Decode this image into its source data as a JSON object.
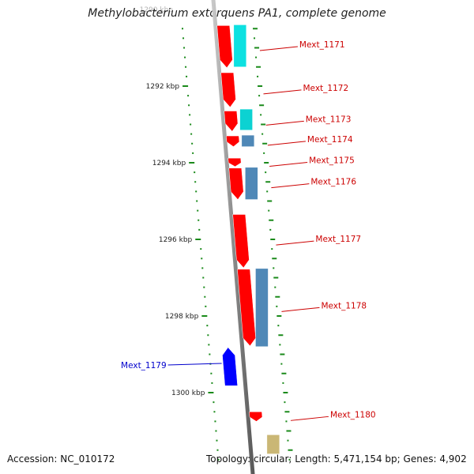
{
  "title": "Methylobacterium extorquens PA1, complete genome",
  "scale": {
    "tick_labels": [
      {
        "position_kbp": 1290,
        "label": "1290 kbp"
      },
      {
        "position_kbp": 1292,
        "label": "1292 kbp"
      },
      {
        "position_kbp": 1294,
        "label": "1294 kbp"
      },
      {
        "position_kbp": 1296,
        "label": "1296 kbp"
      },
      {
        "position_kbp": 1298,
        "label": "1298 kbp"
      },
      {
        "position_kbp": 1300,
        "label": "1300 kbp"
      }
    ]
  },
  "genes": [
    {
      "label": "Mext_1171",
      "strand": "reverse",
      "start_kbp": 1290.42,
      "end_kbp": 1291.52,
      "color": "#ff0000",
      "label_color": "#cc0000"
    },
    {
      "label": "Mext_1172",
      "strand": "reverse",
      "start_kbp": 1291.65,
      "end_kbp": 1292.55,
      "color": "#ff0000",
      "label_color": "#cc0000"
    },
    {
      "label": "Mext_1173",
      "strand": "reverse",
      "start_kbp": 1292.65,
      "end_kbp": 1293.18,
      "color": "#ff0000",
      "label_color": "#cc0000"
    },
    {
      "label": "Mext_1174",
      "strand": "reverse",
      "start_kbp": 1293.3,
      "end_kbp": 1293.58,
      "color": "#ff0000",
      "label_color": "#cc0000"
    },
    {
      "label": "Mext_1175",
      "strand": "reverse",
      "start_kbp": 1293.88,
      "end_kbp": 1294.1,
      "color": "#ff0000",
      "label_color": "#cc0000"
    },
    {
      "label": "Mext_1176",
      "strand": "reverse",
      "start_kbp": 1294.14,
      "end_kbp": 1294.96,
      "color": "#ff0000",
      "label_color": "#cc0000"
    },
    {
      "label": "Mext_1177",
      "strand": "reverse",
      "start_kbp": 1295.35,
      "end_kbp": 1296.74,
      "color": "#ff0000",
      "label_color": "#cc0000"
    },
    {
      "label": "Mext_1178",
      "strand": "reverse",
      "start_kbp": 1296.78,
      "end_kbp": 1298.78,
      "color": "#ff0000",
      "label_color": "#cc0000"
    },
    {
      "label": "Mext_1179",
      "strand": "forward",
      "start_kbp": 1298.82,
      "end_kbp": 1299.82,
      "color": "#0000ff",
      "label_color": "#0000cc"
    },
    {
      "label": "Mext_1180",
      "strand": "reverse",
      "start_kbp": 1300.5,
      "end_kbp": 1300.75,
      "color": "#ff0000",
      "label_color": "#cc0000"
    }
  ],
  "feature_tracks": [
    {
      "start_kbp": 1290.4,
      "end_kbp": 1291.5,
      "color": "#00e0e0"
    },
    {
      "start_kbp": 1292.6,
      "end_kbp": 1293.15,
      "color": "#00d0d0"
    },
    {
      "start_kbp": 1293.28,
      "end_kbp": 1293.58,
      "color": "#4682b4"
    },
    {
      "start_kbp": 1294.12,
      "end_kbp": 1294.96,
      "color": "#4682b4"
    },
    {
      "start_kbp": 1296.76,
      "end_kbp": 1298.8,
      "color": "#4682b4"
    },
    {
      "start_kbp": 1301.1,
      "end_kbp": 1301.6,
      "color": "#c8b46e"
    }
  ],
  "footer": {
    "accession_label": "Accession:",
    "accession": "NC_010172",
    "topology_label": "Topology:",
    "topology": "circular;",
    "length_label": "Length:",
    "length": "5,471,154 bp;",
    "genes_label": "Genes:",
    "gene_count": "4,902"
  },
  "colors": {
    "backbone": "#8c8c8c",
    "tick": "#1a8a1a",
    "forward_gene": "#0000ff",
    "reverse_gene": "#ff0000",
    "scale_label": "#222222"
  }
}
